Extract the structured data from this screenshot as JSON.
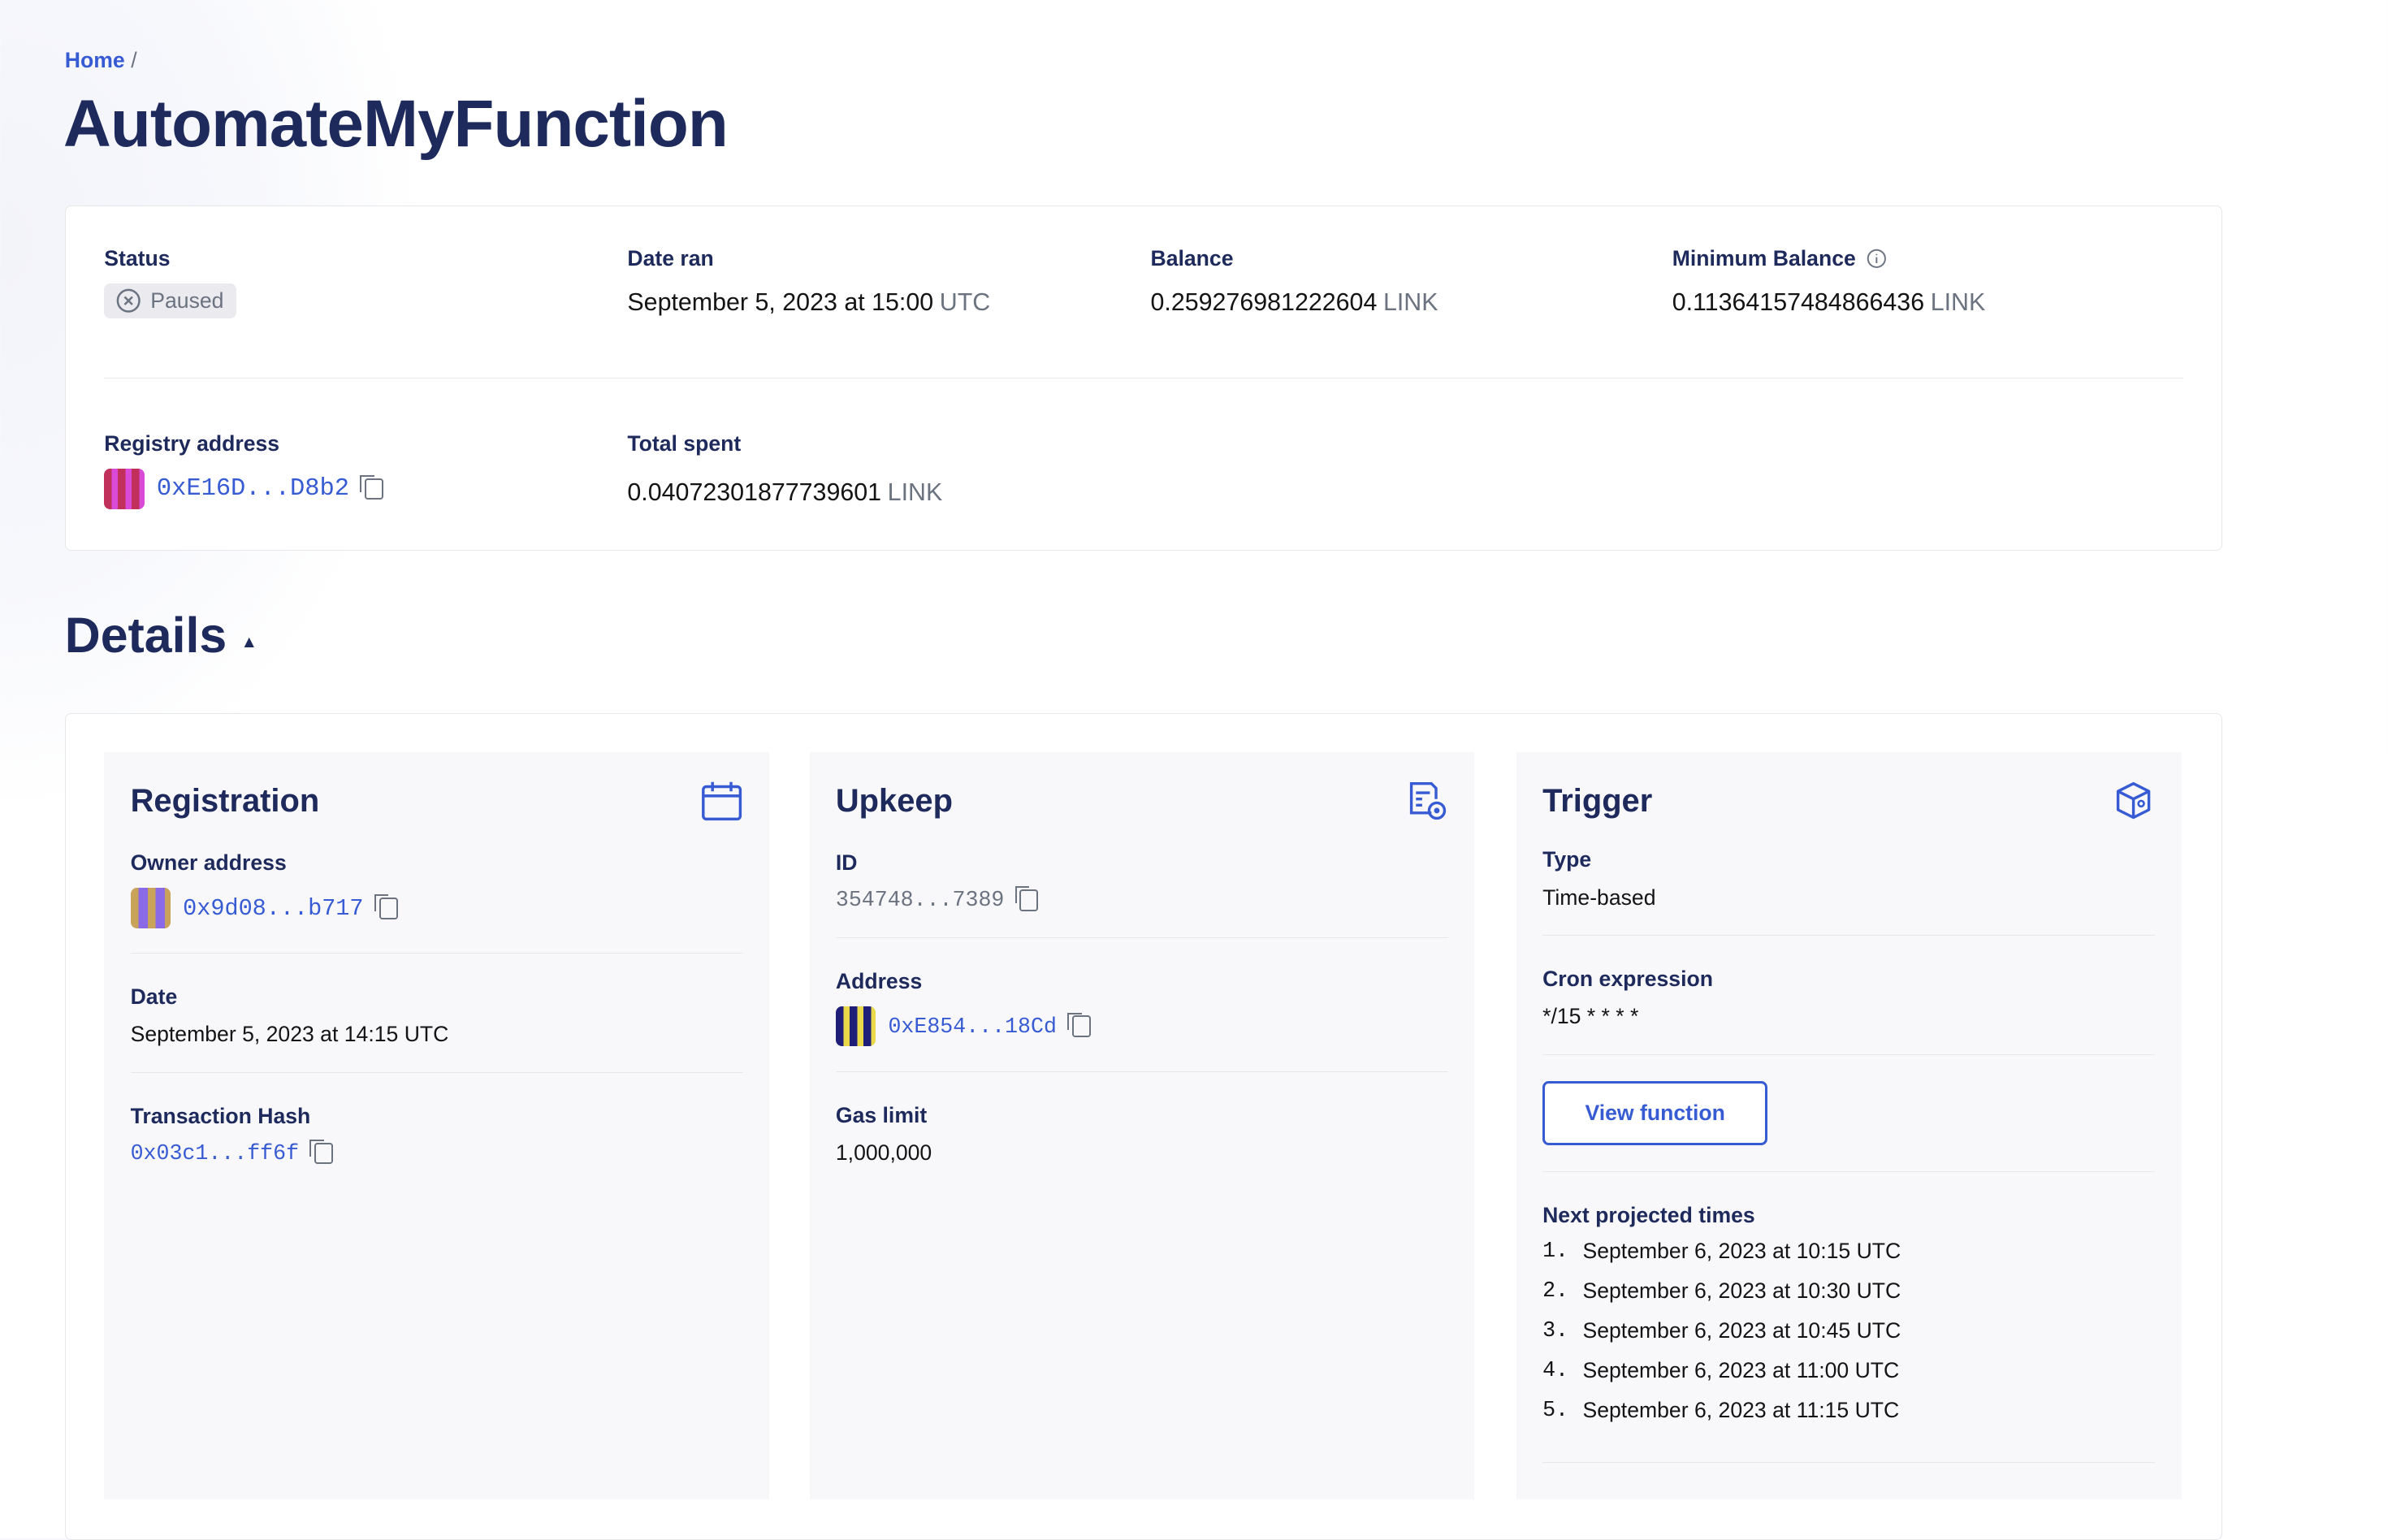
{
  "breadcrumb": {
    "home": "Home",
    "separator": "/"
  },
  "page_title": "AutomateMyFunction",
  "summary": {
    "status": {
      "label": "Status",
      "value": "Paused"
    },
    "date_ran": {
      "label": "Date ran",
      "value": "September 5, 2023 at 15:00",
      "unit": "UTC"
    },
    "balance": {
      "label": "Balance",
      "value": "0.259276981222604",
      "unit": "LINK"
    },
    "minimum_balance": {
      "label": "Minimum Balance",
      "value": "0.11364157484866436",
      "unit": "LINK"
    },
    "registry_address": {
      "label": "Registry address",
      "value": "0xE16D...D8b2"
    },
    "total_spent": {
      "label": "Total spent",
      "value": "0.04072301877739601",
      "unit": "LINK"
    }
  },
  "details": {
    "heading": "Details",
    "registration": {
      "title": "Registration",
      "owner_label": "Owner address",
      "owner": "0x9d08...b717",
      "date_label": "Date",
      "date": "September 5, 2023 at 14:15 UTC",
      "tx_label": "Transaction Hash",
      "tx": "0x03c1...ff6f"
    },
    "upkeep": {
      "title": "Upkeep",
      "id_label": "ID",
      "id": "354748...7389",
      "address_label": "Address",
      "address": "0xE854...18Cd",
      "gas_label": "Gas limit",
      "gas": "1,000,000"
    },
    "trigger": {
      "title": "Trigger",
      "type_label": "Type",
      "type": "Time-based",
      "cron_label": "Cron expression",
      "cron": "*/15 * * * *",
      "view_button": "View function",
      "next_label": "Next projected times",
      "next_times": [
        {
          "n": "1.",
          "t": "September 6, 2023 at 10:15 UTC"
        },
        {
          "n": "2.",
          "t": "September 6, 2023 at 10:30 UTC"
        },
        {
          "n": "3.",
          "t": "September 6, 2023 at 10:45 UTC"
        },
        {
          "n": "4.",
          "t": "September 6, 2023 at 11:00 UTC"
        },
        {
          "n": "5.",
          "t": "September 6, 2023 at 11:15 UTC"
        }
      ]
    }
  },
  "colors": {
    "accent": "#375bd2",
    "navy": "#1f2a5c",
    "muted": "#6b7280"
  }
}
